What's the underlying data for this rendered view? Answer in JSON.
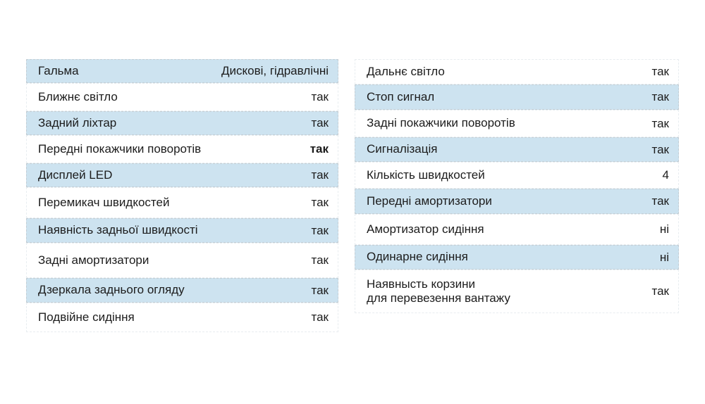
{
  "colors": {
    "row_highlight": "#cde3f0",
    "row_border": "#c4ced5",
    "text": "#1c1c1c",
    "background": "#ffffff"
  },
  "spec_table": {
    "left_column": {
      "rows": [
        {
          "label": "Гальма",
          "value": "Дискові, гідравлічні",
          "highlighted": true
        },
        {
          "label": "Ближнє світло",
          "value": "так",
          "highlighted": false
        },
        {
          "label": "Задний ліхтар",
          "value": "так",
          "highlighted": true
        },
        {
          "label": "Передні покажчики поворотів",
          "value": "так",
          "highlighted": false,
          "bold_value": true
        },
        {
          "label": "Дисплей LED",
          "value": "так",
          "highlighted": true
        },
        {
          "label": "Перемикач швидкостей",
          "value": "так",
          "highlighted": false
        },
        {
          "label": "Наявність задньої швидкості",
          "value": "так",
          "highlighted": true
        },
        {
          "label": "Задні амортизатори",
          "value": "так",
          "highlighted": false
        },
        {
          "label": "Дзеркала заднього огляду",
          "value": "так",
          "highlighted": true
        },
        {
          "label": "Подвійне сидіння",
          "value": "так",
          "highlighted": false
        }
      ]
    },
    "right_column": {
      "rows": [
        {
          "label": "Дальнє світло",
          "value": "так",
          "highlighted": false
        },
        {
          "label": "Стоп сигнал",
          "value": "так",
          "highlighted": true
        },
        {
          "label": "Задні покажчики поворотів",
          "value": "так",
          "highlighted": false
        },
        {
          "label": "Сигналізація",
          "value": "так",
          "highlighted": true
        },
        {
          "label": "Кількість швидкостей",
          "value": "4",
          "highlighted": false
        },
        {
          "label": "Передні амортизатори",
          "value": "так",
          "highlighted": true
        },
        {
          "label": "Амортизатор сидіння",
          "value": "ні",
          "highlighted": false
        },
        {
          "label": "Одинарне сидіння",
          "value": "ні",
          "highlighted": true
        },
        {
          "label": "Наявнысть корзини\nдля перевезення вантажу",
          "value": "так",
          "highlighted": false
        }
      ]
    }
  }
}
